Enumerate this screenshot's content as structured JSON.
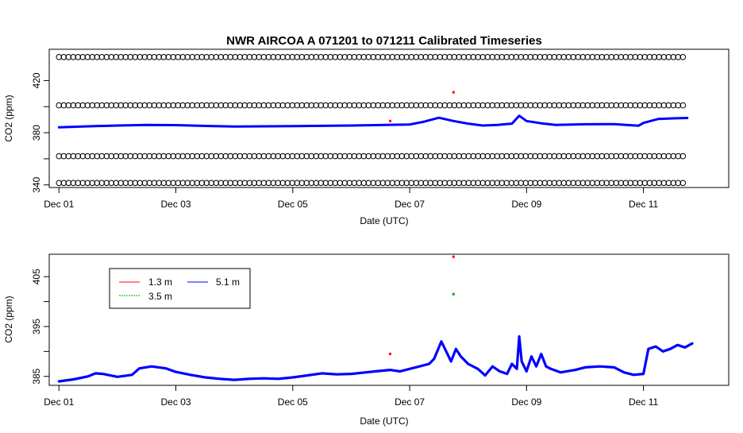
{
  "chart_data": [
    {
      "type": "scatter",
      "title": "NWR   AIRCOA  A    071201  to  071211   Calibrated Timeseries",
      "xlabel": "Date (UTC)",
      "ylabel": "CO2 (ppm)",
      "x_unit": "date",
      "xlim": [
        "2007-11-30T20:00",
        "2007-12-12T11:00"
      ],
      "ylim": [
        338,
        444
      ],
      "x_ticks": [
        "Dec 01",
        "Dec 03",
        "Dec 05",
        "Dec 07",
        "Dec 09",
        "Dec 11"
      ],
      "x_tick_dates": [
        "2007-12-01",
        "2007-12-03",
        "2007-12-05",
        "2007-12-07",
        "2007-12-09",
        "2007-12-11"
      ],
      "y_ticks": [
        340,
        360,
        380,
        400,
        420
      ],
      "y_tick_labels": [
        "340",
        "",
        "380",
        "",
        "420"
      ],
      "grid": false,
      "series": [
        {
          "color": "#0000ff",
          "marker": "dot",
          "x": [
            "2007-12-01T00:00",
            "2007-12-01T12:00",
            "2007-12-02T00:00",
            "2007-12-02T12:00",
            "2007-12-03T00:00",
            "2007-12-03T12:00",
            "2007-12-04T00:00",
            "2007-12-04T12:00",
            "2007-12-05T00:00",
            "2007-12-05T12:00",
            "2007-12-06T00:00",
            "2007-12-06T12:00",
            "2007-12-06T18:00",
            "2007-12-07T00:00",
            "2007-12-07T06:00",
            "2007-12-07T12:00",
            "2007-12-07T18:00",
            "2007-12-08T00:00",
            "2007-12-08T06:00",
            "2007-12-08T12:00",
            "2007-12-08T18:00",
            "2007-12-08T21:00",
            "2007-12-09T00:00",
            "2007-12-09T06:00",
            "2007-12-09T12:00",
            "2007-12-10T00:00",
            "2007-12-10T12:00",
            "2007-12-10T22:00",
            "2007-12-11T00:00",
            "2007-12-11T06:00",
            "2007-12-11T12:00",
            "2007-12-11T18:00"
          ],
          "y": [
            384.2,
            384.9,
            385.5,
            386.0,
            385.8,
            385.2,
            384.7,
            384.9,
            385.0,
            385.3,
            385.5,
            385.9,
            386.1,
            386.3,
            388.5,
            391.5,
            389.0,
            387.0,
            385.5,
            386.0,
            387.0,
            393.0,
            389.0,
            387.2,
            386.0,
            386.5,
            386.6,
            385.4,
            387.5,
            390.5,
            391.0,
            391.3
          ]
        },
        {
          "color": "#000000",
          "marker": "open-circle",
          "x": [
            "2007-12-01T00:00",
            "2007-12-11T18:00"
          ],
          "y": [
            341.5,
            341.5
          ]
        },
        {
          "color": "#000000",
          "marker": "open-circle",
          "x": [
            "2007-12-01T00:00",
            "2007-12-11T18:00"
          ],
          "y": [
            362.0,
            362.0
          ]
        },
        {
          "color": "#000000",
          "marker": "open-circle",
          "x": [
            "2007-12-01T00:00",
            "2007-12-11T18:00"
          ],
          "y": [
            401.0,
            401.0
          ]
        },
        {
          "color": "#000000",
          "marker": "open-circle",
          "x": [
            "2007-12-01T00:00",
            "2007-12-11T18:00"
          ],
          "y": [
            438.0,
            438.0
          ]
        },
        {
          "color": "#ff0000",
          "marker": "dot",
          "x": [
            "2007-12-06T16:00",
            "2007-12-07T18:00"
          ],
          "y": [
            389.0,
            411.0
          ]
        }
      ]
    },
    {
      "type": "line",
      "xlabel": "Date (UTC)",
      "ylabel": "CO2 (ppm)",
      "x_unit": "date",
      "xlim": [
        "2007-11-30T20:00",
        "2007-12-12T11:00"
      ],
      "ylim": [
        383.2,
        409.5
      ],
      "x_ticks": [
        "Dec 01",
        "Dec 03",
        "Dec 05",
        "Dec 07",
        "Dec 09",
        "Dec 11"
      ],
      "x_tick_dates": [
        "2007-12-01",
        "2007-12-03",
        "2007-12-05",
        "2007-12-07",
        "2007-12-09",
        "2007-12-11"
      ],
      "y_ticks": [
        385,
        390,
        395,
        400,
        405
      ],
      "y_tick_labels": [
        "385",
        "",
        "395",
        "",
        "405"
      ],
      "grid": false,
      "legend": {
        "placement": "top-left",
        "entries": [
          {
            "label": "1.3 m",
            "color": "#ff0000"
          },
          {
            "label": "3.5 m",
            "color": "#00aa00"
          },
          {
            "label": "5.1 m",
            "color": "#0000ff"
          }
        ]
      },
      "series": [
        {
          "name": "5.1 m",
          "color": "#0000ff",
          "x": [
            "2007-12-01T00:00",
            "2007-12-01T06:00",
            "2007-12-01T12:00",
            "2007-12-01T15:00",
            "2007-12-01T18:00",
            "2007-12-02T00:00",
            "2007-12-02T06:00",
            "2007-12-02T09:00",
            "2007-12-02T14:00",
            "2007-12-02T20:00",
            "2007-12-03T00:00",
            "2007-12-03T06:00",
            "2007-12-03T12:00",
            "2007-12-03T18:00",
            "2007-12-04T00:00",
            "2007-12-04T06:00",
            "2007-12-04T12:00",
            "2007-12-04T18:00",
            "2007-12-05T00:00",
            "2007-12-05T06:00",
            "2007-12-05T12:00",
            "2007-12-05T18:00",
            "2007-12-06T00:00",
            "2007-12-06T06:00",
            "2007-12-06T10:00",
            "2007-12-06T16:00",
            "2007-12-06T20:00",
            "2007-12-07T00:00",
            "2007-12-07T04:00",
            "2007-12-07T08:00",
            "2007-12-07T10:00",
            "2007-12-07T13:00",
            "2007-12-07T15:00",
            "2007-12-07T17:00",
            "2007-12-07T19:00",
            "2007-12-07T21:00",
            "2007-12-08T00:00",
            "2007-12-08T04:00",
            "2007-12-08T07:00",
            "2007-12-08T10:00",
            "2007-12-08T13:00",
            "2007-12-08T16:00",
            "2007-12-08T18:00",
            "2007-12-08T20:00",
            "2007-12-08T21:00",
            "2007-12-08T22:00",
            "2007-12-09T00:00",
            "2007-12-09T02:00",
            "2007-12-09T04:00",
            "2007-12-09T06:00",
            "2007-12-09T08:00",
            "2007-12-09T10:00",
            "2007-12-09T14:00",
            "2007-12-09T20:00",
            "2007-12-10T00:00",
            "2007-12-10T06:00",
            "2007-12-10T12:00",
            "2007-12-10T16:00",
            "2007-12-10T20:00",
            "2007-12-11T00:00",
            "2007-12-11T02:00",
            "2007-12-11T05:00",
            "2007-12-11T08:00",
            "2007-12-11T11:00",
            "2007-12-11T14:00",
            "2007-12-11T17:00",
            "2007-12-11T20:00"
          ],
          "y": [
            384.0,
            384.4,
            385.0,
            385.6,
            385.5,
            384.9,
            385.3,
            386.6,
            387.0,
            386.6,
            385.9,
            385.3,
            384.8,
            384.5,
            384.3,
            384.5,
            384.6,
            384.5,
            384.8,
            385.2,
            385.6,
            385.4,
            385.5,
            385.8,
            386.0,
            386.3,
            386.0,
            386.5,
            387.0,
            387.5,
            388.5,
            392.0,
            390.0,
            388.0,
            390.5,
            389.0,
            387.5,
            386.5,
            385.2,
            387.0,
            386.0,
            385.5,
            387.5,
            386.5,
            393.0,
            388.0,
            386.0,
            389.0,
            387.0,
            389.5,
            387.0,
            386.5,
            385.8,
            386.3,
            386.8,
            387.0,
            386.8,
            385.8,
            385.3,
            385.5,
            390.5,
            391.0,
            390.0,
            390.5,
            391.3,
            390.8,
            391.6
          ]
        },
        {
          "name": "1.3 m",
          "color": "#ff0000",
          "x": [
            "2007-12-06T16:00",
            "2007-12-07T18:00"
          ],
          "y": [
            389.5,
            409.0
          ]
        },
        {
          "name": "3.5 m",
          "color": "#00aa00",
          "x": [
            "2007-12-07T18:00"
          ],
          "y": [
            401.5
          ]
        }
      ]
    }
  ]
}
